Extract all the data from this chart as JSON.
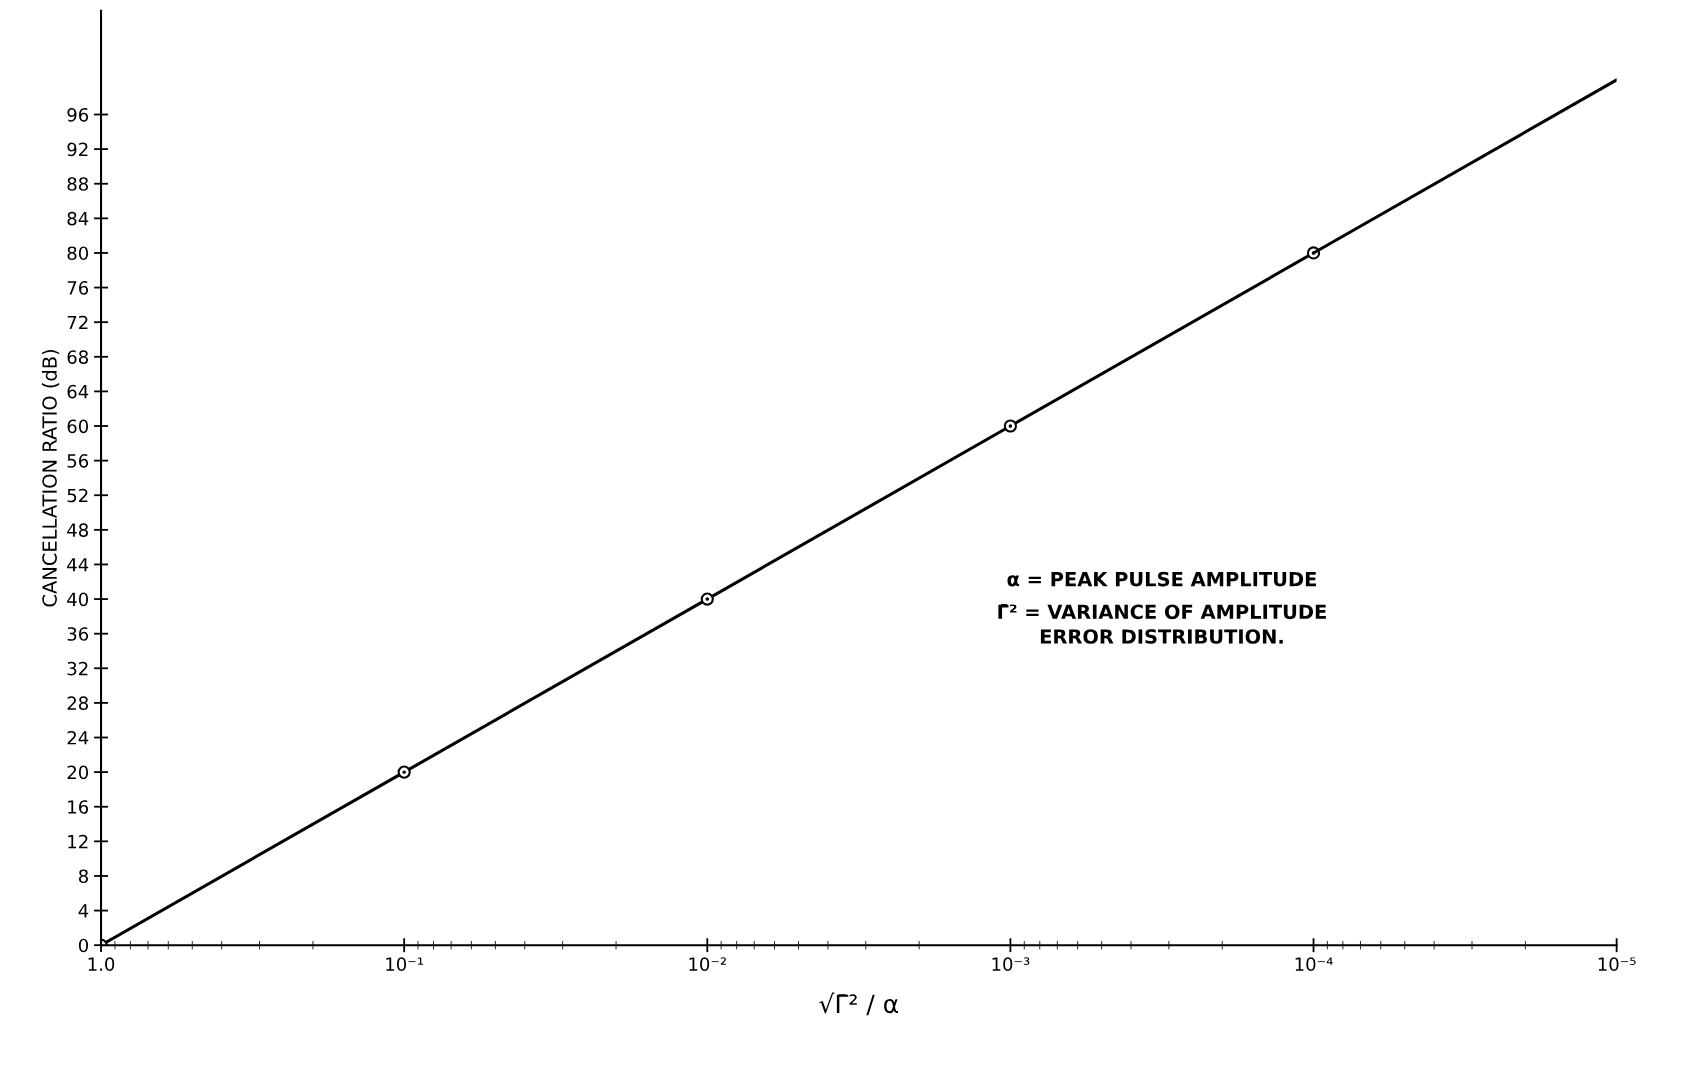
{
  "chart_data": {
    "type": "line",
    "xlabel": "√Γ̄² / α",
    "ylabel": "CANCELLATION RATIO (dB)",
    "log": "x",
    "grid": false,
    "legend": false,
    "xlim": [
      1.0,
      1e-05
    ],
    "xticks": [
      {
        "value": 1.0,
        "label": "1.0"
      },
      {
        "value": 0.1,
        "label": "10⁻¹"
      },
      {
        "value": 0.01,
        "label": "10⁻²"
      },
      {
        "value": 0.001,
        "label": "10⁻³"
      },
      {
        "value": 0.0001,
        "label": "10⁻⁴"
      },
      {
        "value": 1e-05,
        "label": "10⁻⁵"
      }
    ],
    "ylim": [
      0,
      108
    ],
    "yticks": [
      0,
      4,
      8,
      12,
      16,
      20,
      24,
      28,
      32,
      36,
      40,
      44,
      48,
      52,
      56,
      60,
      64,
      68,
      72,
      76,
      80,
      84,
      88,
      92,
      96
    ],
    "series": [
      {
        "color": "#000000",
        "marker": "circle",
        "line_style": "solid",
        "x": [
          1.0,
          0.1,
          0.01,
          0.001,
          0.0001
        ],
        "values": [
          0,
          20,
          40,
          60,
          80
        ]
      },
      {
        "color": "#000000",
        "line_style": "solid",
        "x": [
          0.0001,
          1e-05
        ],
        "values": [
          80,
          100
        ]
      }
    ],
    "annotations": [
      "α = PEAK PULSE AMPLITUDE",
      "Γ̄² = VARIANCE OF AMPLITUDE\nERROR DISTRIBUTION."
    ]
  }
}
